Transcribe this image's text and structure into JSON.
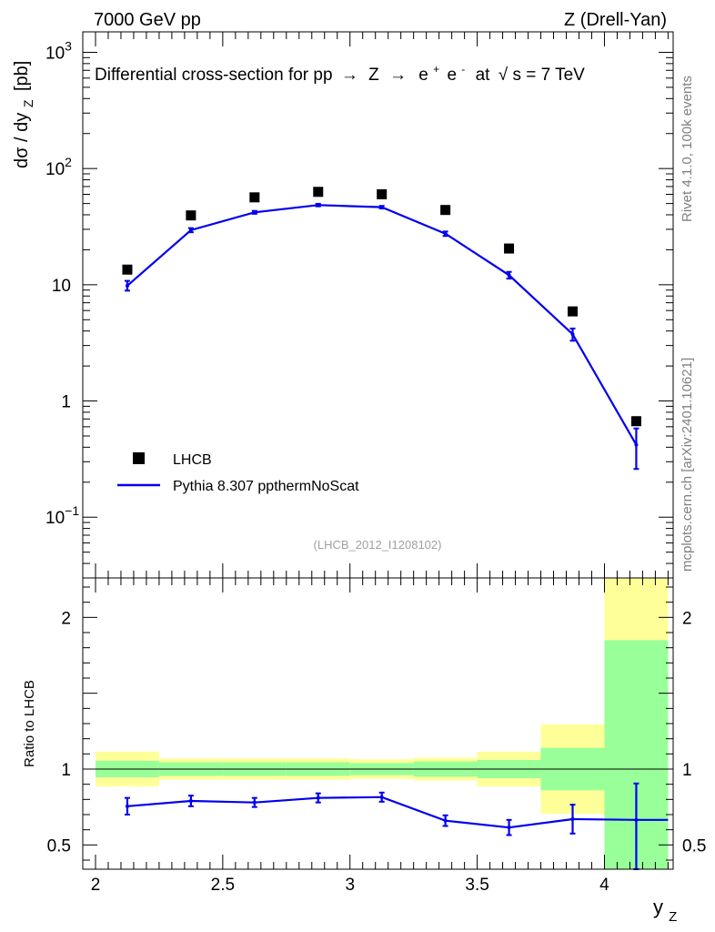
{
  "header": {
    "left": "7000 GeV pp",
    "right": "Z (Drell-Yan)"
  },
  "side": {
    "rivet": "Rivet 4.1.0,  100k events",
    "mcplots": "mcplots.cern.ch [arXiv:2401.10621]"
  },
  "main_title": {
    "prefix": "Differential cross-section for pp",
    "arrow1": "→",
    "z": "Z",
    "arrow2": "→",
    "ep": "e",
    "ep_sup": "+",
    "em": "e",
    "em_sup": "-",
    "at": "at",
    "sqrt": "√",
    "s_eq": "s = 7 TeV"
  },
  "analysis_id": "(LHCB_2012_I1208102)",
  "chart_data": [
    {
      "type": "scatter",
      "panel": "main",
      "ylabel_main": "dσ / dy",
      "ylabel_sub": "Z",
      "ylabel_unit": "[pb]",
      "yscale": "log",
      "ylim": [
        0.03,
        1500
      ],
      "xlim": [
        1.95,
        4.27
      ],
      "y_tick_labels": [
        {
          "v": 0.1,
          "base": "10",
          "exp": "−1"
        },
        {
          "v": 1,
          "base": "1",
          "exp": ""
        },
        {
          "v": 10,
          "base": "10",
          "exp": ""
        },
        {
          "v": 100,
          "base": "10",
          "exp": "2"
        },
        {
          "v": 1000,
          "base": "10",
          "exp": "3"
        }
      ],
      "series": [
        {
          "name": "LHCB",
          "style": "markers",
          "color": "#000000",
          "x": [
            2.125,
            2.375,
            2.625,
            2.875,
            3.125,
            3.375,
            3.625,
            3.875,
            4.125
          ],
          "y": [
            13.5,
            39.5,
            56.5,
            63.0,
            60.0,
            44.0,
            20.5,
            5.9,
            0.67
          ]
        },
        {
          "name": "Pythia 8.307 ppthermNoScat",
          "style": "line",
          "color": "#0000ee",
          "x": [
            2.125,
            2.375,
            2.625,
            2.875,
            3.125,
            3.375,
            3.625,
            3.875,
            4.125
          ],
          "y": [
            9.8,
            29.5,
            42.0,
            48.5,
            46.5,
            27.5,
            12.1,
            3.75,
            0.42
          ],
          "err_low": [
            8.9,
            28.3,
            40.8,
            47.3,
            45.3,
            26.3,
            11.3,
            3.3,
            0.26
          ],
          "err_high": [
            10.8,
            30.7,
            43.2,
            49.7,
            47.7,
            28.7,
            12.9,
            4.2,
            0.58
          ]
        }
      ]
    },
    {
      "type": "line",
      "panel": "ratio",
      "ylabel": "Ratio to LHCB",
      "yscale": "linear",
      "ylim": [
        0.34,
        2.26
      ],
      "xlim": [
        1.95,
        4.27
      ],
      "x_tick_labels": [
        "2",
        "2.5",
        "3",
        "3.5",
        "4"
      ],
      "y_tick_labels": [
        "0.5",
        "1",
        "2"
      ],
      "xlabel": "y",
      "xlabel_sub": "Z",
      "bands": {
        "bins": [
          [
            2.0,
            2.25
          ],
          [
            2.25,
            2.5
          ],
          [
            2.5,
            2.75
          ],
          [
            2.75,
            3.0
          ],
          [
            3.0,
            3.25
          ],
          [
            3.25,
            3.5
          ],
          [
            3.5,
            3.75
          ],
          [
            3.75,
            4.0
          ],
          [
            4.0,
            4.25
          ]
        ],
        "green_low": [
          0.945,
          0.955,
          0.955,
          0.955,
          0.96,
          0.95,
          0.94,
          0.86,
          0.34
        ],
        "green_high": [
          1.055,
          1.045,
          1.045,
          1.045,
          1.04,
          1.05,
          1.06,
          1.14,
          1.85
        ],
        "yellow_low": [
          0.885,
          0.93,
          0.93,
          0.93,
          0.935,
          0.925,
          0.885,
          0.705,
          0.34
        ],
        "yellow_high": [
          1.115,
          1.07,
          1.07,
          1.07,
          1.065,
          1.075,
          1.115,
          1.295,
          2.26
        ]
      },
      "series": [
        {
          "name": "Pythia 8.307 ppthermNoScat / LHCB",
          "color": "#0000ee",
          "x": [
            2.125,
            2.375,
            2.625,
            2.875,
            3.125,
            3.375,
            3.625,
            3.875,
            4.125
          ],
          "y": [
            0.755,
            0.79,
            0.78,
            0.81,
            0.815,
            0.66,
            0.615,
            0.67,
            0.665
          ],
          "err_low": [
            0.7,
            0.755,
            0.75,
            0.78,
            0.785,
            0.625,
            0.565,
            0.575,
            0.34
          ],
          "err_high": [
            0.81,
            0.825,
            0.81,
            0.84,
            0.845,
            0.695,
            0.665,
            0.765,
            0.905
          ],
          "line_end_x": 4.25
        }
      ]
    }
  ]
}
